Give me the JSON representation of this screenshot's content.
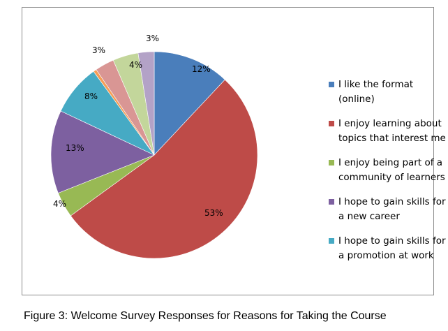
{
  "chart_data": {
    "type": "pie",
    "title": "",
    "start_angle_deg": 0,
    "direction": "clockwise",
    "slices": [
      {
        "label": "I like the format (online)",
        "value": 12,
        "display": "12%",
        "color": "#4a7ebb"
      },
      {
        "label": "I enjoy learning about topics that interest me",
        "value": 53,
        "display": "53%",
        "color": "#be4b48"
      },
      {
        "label": "I enjoy being part of a community of learners",
        "value": 4,
        "display": "4%",
        "color": "#98b954"
      },
      {
        "label": "I hope to gain skills for a new career",
        "value": 13,
        "display": "13%",
        "color": "#7d60a0"
      },
      {
        "label": "I hope to gain skills for a promotion at work",
        "value": 8,
        "display": "8%",
        "color": "#46aac4"
      },
      {
        "label": "",
        "value": 0.5,
        "display": "",
        "color": "#f59d56"
      },
      {
        "label": "",
        "value": 3,
        "display": "3%",
        "color": "#d99694"
      },
      {
        "label": "",
        "value": 4,
        "display": "4%",
        "color": "#c3d69b"
      },
      {
        "label": "",
        "value": 2.5,
        "display": "3%",
        "color": "#b3a2c7"
      }
    ],
    "legend": {
      "placement": "right",
      "entries": [
        {
          "lines": [
            "I like the format",
            "(online)"
          ],
          "color": "#4a7ebb"
        },
        {
          "lines": [
            "I enjoy learning about",
            "topics that interest me"
          ],
          "color": "#be4b48"
        },
        {
          "lines": [
            "I enjoy being part of a",
            "community of learners"
          ],
          "color": "#98b954"
        },
        {
          "lines": [
            "I hope to gain skills for",
            "a new career"
          ],
          "color": "#7d60a0"
        },
        {
          "lines": [
            "I hope to gain skills for",
            "a promotion at work"
          ],
          "color": "#46aac4"
        }
      ]
    }
  },
  "caption": "Figure 3: Welcome Survey Responses for Reasons for Taking the Course"
}
